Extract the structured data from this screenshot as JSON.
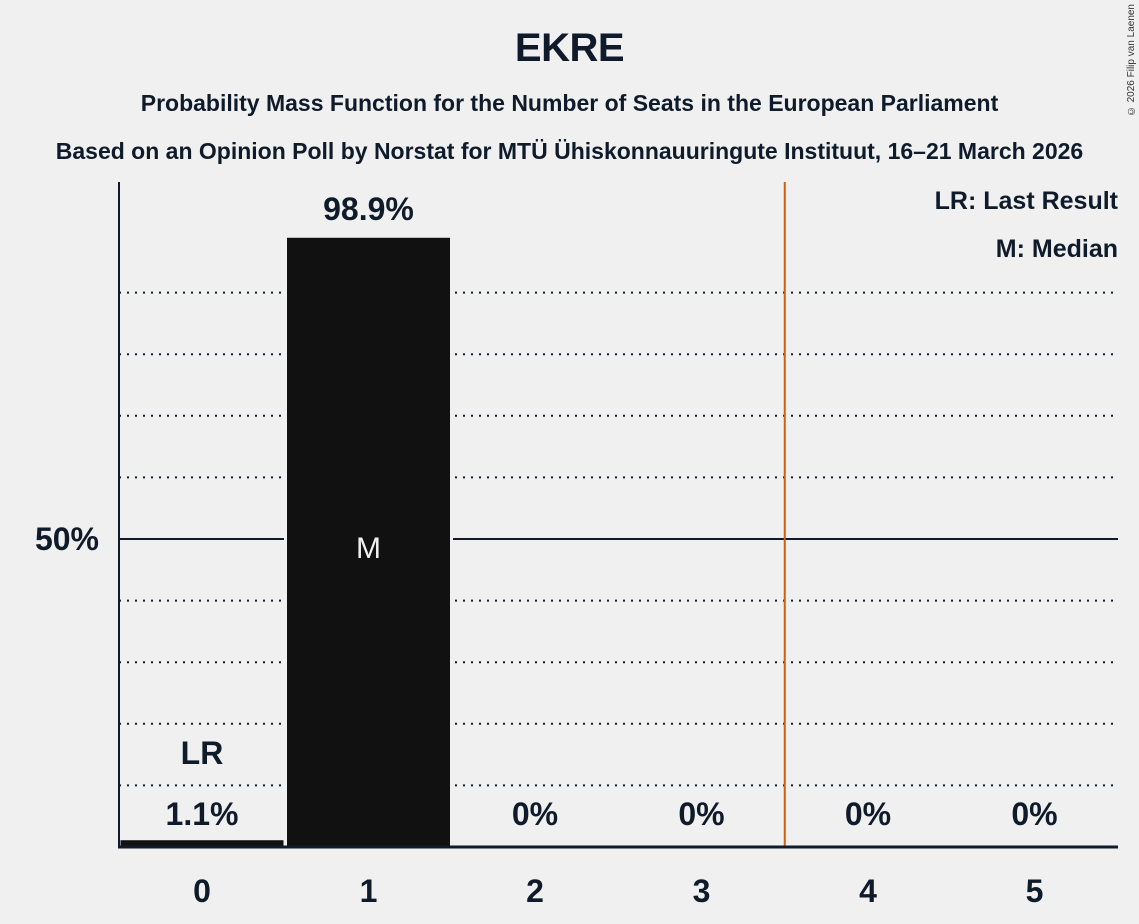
{
  "header": {
    "title": "EKRE",
    "subtitle": "Probability Mass Function for the Number of Seats in the European Parliament",
    "subtitle2": "Based on an Opinion Poll by Norstat for MTÜ Ühiskonnauuringute Instituut, 16–21 March 2026",
    "copyright": "© 2026 Filip van Laenen"
  },
  "legend": {
    "last_result": "LR: Last Result",
    "median": "M: Median"
  },
  "colors": {
    "background": "#f0f0f0",
    "bar": "#111111",
    "text": "#0f1b2a",
    "last_result_line": "#d0600f"
  },
  "chart_data": {
    "type": "bar",
    "title": "EKRE",
    "subtitle": "Probability Mass Function for the Number of Seats in the European Parliament",
    "categories": [
      "0",
      "1",
      "2",
      "3",
      "4",
      "5"
    ],
    "values": [
      1.1,
      98.9,
      0,
      0,
      0,
      0
    ],
    "value_labels": [
      "1.1%",
      "98.9%",
      "0%",
      "0%",
      "0%",
      "0%"
    ],
    "xlabel": "",
    "ylabel": "",
    "ylim": [
      0,
      100
    ],
    "y_ticks": [
      {
        "value": 50,
        "label": "50%"
      }
    ],
    "grid": "dotted every 10%, solid at 50%",
    "annotations": [
      {
        "category": "0",
        "label": "LR",
        "meaning": "Last Result"
      },
      {
        "category": "1",
        "label": "M",
        "meaning": "Median"
      }
    ],
    "last_result_line_x": 3.5,
    "legend_position": "top-right"
  }
}
